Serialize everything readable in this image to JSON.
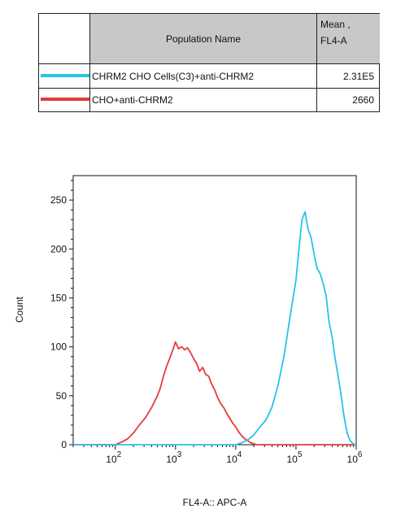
{
  "table": {
    "header_name": "Population Name",
    "header_mean_line1": "Mean ,",
    "header_mean_line2": "FL4-A",
    "rows": [
      {
        "name": "CHRM2 CHO Cells(C3)+anti-CHRM2",
        "mean": "2.31E5",
        "color": "#29c2e8"
      },
      {
        "name": "CHO+anti-CHRM2",
        "mean": "2660",
        "color": "#e63a3a"
      }
    ]
  },
  "chart_data": {
    "type": "line",
    "xlabel": "FL4-A:: APC-A",
    "ylabel": "Count",
    "xscale": "log",
    "xlim": [
      20,
      1000000
    ],
    "ylim": [
      0,
      275
    ],
    "yticks": [
      "0",
      "50",
      "100",
      "150",
      "200",
      "250"
    ],
    "xticks": [
      {
        "base": "10",
        "exp": "2"
      },
      {
        "base": "10",
        "exp": "3"
      },
      {
        "base": "10",
        "exp": "4"
      },
      {
        "base": "10",
        "exp": "5"
      },
      {
        "base": "10",
        "exp": "6"
      }
    ],
    "series": [
      {
        "name": "CHO+anti-CHRM2",
        "color": "#e63a3a",
        "x": [
          20,
          100,
          130,
          160,
          200,
          250,
          320,
          400,
          500,
          560,
          630,
          710,
          800,
          890,
          1000,
          1120,
          1260,
          1410,
          1580,
          1780,
          2000,
          2240,
          2510,
          2820,
          3160,
          3550,
          3980,
          4470,
          5010,
          5620,
          6310,
          7080,
          7940,
          8910,
          10000,
          11220,
          12590,
          14130,
          15850,
          17780,
          20000,
          22000,
          25000,
          1000000
        ],
        "y": [
          0,
          0,
          3,
          6,
          12,
          20,
          28,
          38,
          50,
          58,
          70,
          80,
          88,
          96,
          105,
          98,
          100,
          97,
          99,
          94,
          88,
          83,
          75,
          79,
          72,
          70,
          62,
          56,
          48,
          42,
          38,
          32,
          27,
          22,
          18,
          13,
          9,
          6,
          4,
          2,
          1,
          0,
          0,
          0
        ]
      },
      {
        "name": "CHRM2 CHO Cells(C3)+anti-CHRM2",
        "color": "#29c2e8",
        "x": [
          20,
          10000,
          12590,
          15850,
          19950,
          25120,
          31620,
          39810,
          50120,
          63100,
          79430,
          100000,
          112200,
          125900,
          141300,
          158500,
          177800,
          199500,
          223900,
          251200,
          281800,
          316200,
          354800,
          398100,
          446700,
          501200,
          562300,
          631000,
          707900,
          794300,
          891300,
          1000000
        ],
        "y": [
          0,
          0,
          2,
          5,
          10,
          18,
          25,
          38,
          60,
          90,
          130,
          168,
          200,
          230,
          238,
          220,
          212,
          195,
          180,
          175,
          165,
          152,
          125,
          110,
          88,
          70,
          50,
          28,
          12,
          4,
          1,
          0
        ]
      }
    ]
  }
}
